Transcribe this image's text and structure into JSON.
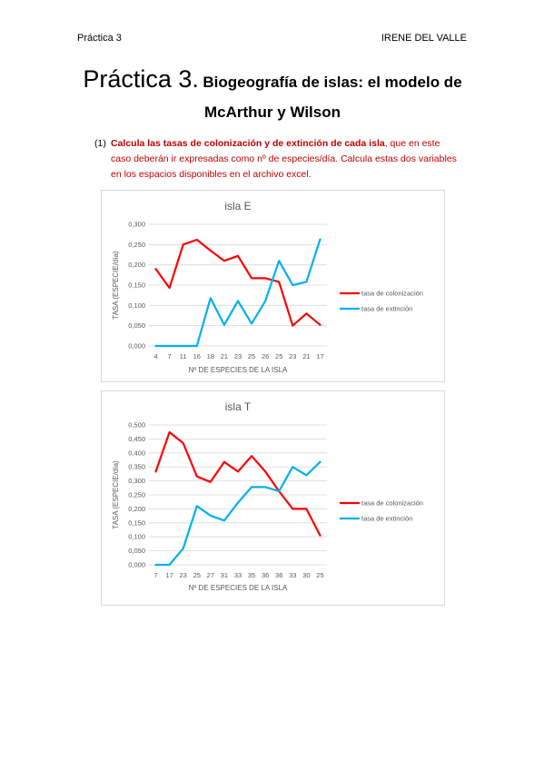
{
  "header": {
    "left": "Práctica 3",
    "right": "IRENE DEL VALLE"
  },
  "title": {
    "big": "Práctica 3.",
    "bold1": "Biogeografía de islas: el modelo de",
    "bold2": "McArthur y Wilson"
  },
  "question": {
    "number": "(1)",
    "bold_text": "Calcula las tasas de colonización y de extinción de cada isla",
    "rest_text": ", que en este caso deberán ir expresadas como nº de especies/día. Calcula estas dos variables en los espacios disponibles en el archivo excel."
  },
  "colors": {
    "colonization": "#ff0000",
    "extinction": "#00b0f0",
    "grid": "#d9d9d9",
    "text": "#595959"
  },
  "chart_data": [
    {
      "type": "line",
      "title": "isla E",
      "xlabel": "Nº DE ESPECIES DE LA ISLA",
      "ylabel": "TASA (ESPECIE/día)",
      "categories": [
        "4",
        "7",
        "11",
        "16",
        "18",
        "21",
        "23",
        "25",
        "26",
        "25",
        "23",
        "21",
        "17"
      ],
      "ylim": [
        0,
        0.3
      ],
      "yticks": [
        "0,000",
        "0,050",
        "0,100",
        "0,150",
        "0,200",
        "0,250",
        "0,300"
      ],
      "legend_position": "right",
      "series": [
        {
          "name": "tasa de colonización",
          "values": [
            0.19,
            0.143,
            0.25,
            0.262,
            0.235,
            0.21,
            0.222,
            0.167,
            0.167,
            0.158,
            0.05,
            0.08,
            0.052
          ]
        },
        {
          "name": "tasa de extinción",
          "values": [
            0,
            0,
            0,
            0,
            0.118,
            0.052,
            0.111,
            0.055,
            0.111,
            0.21,
            0.15,
            0.158,
            0.263
          ]
        }
      ]
    },
    {
      "type": "line",
      "title": "isla T",
      "xlabel": "Nº DE ESPECIES DE LA ISLA",
      "ylabel": "TASA (ESPECIE/día)",
      "categories": [
        "7",
        "17",
        "23",
        "25",
        "27",
        "31",
        "33",
        "35",
        "36",
        "36",
        "33",
        "30",
        "25"
      ],
      "ylim": [
        0,
        0.5
      ],
      "yticks": [
        "0,000",
        "0,050",
        "0,100",
        "0,150",
        "0,200",
        "0,250",
        "0,300",
        "0,350",
        "0,400",
        "0,450",
        "0,500"
      ],
      "legend_position": "right",
      "series": [
        {
          "name": "tasa de colonización",
          "values": [
            0.333,
            0.474,
            0.435,
            0.316,
            0.296,
            0.368,
            0.333,
            0.389,
            0.333,
            0.263,
            0.2,
            0.2,
            0.105
          ]
        },
        {
          "name": "tasa de extinción",
          "values": [
            0,
            0,
            0.058,
            0.21,
            0.176,
            0.158,
            0.222,
            0.278,
            0.278,
            0.263,
            0.35,
            0.32,
            0.368
          ]
        }
      ]
    }
  ]
}
